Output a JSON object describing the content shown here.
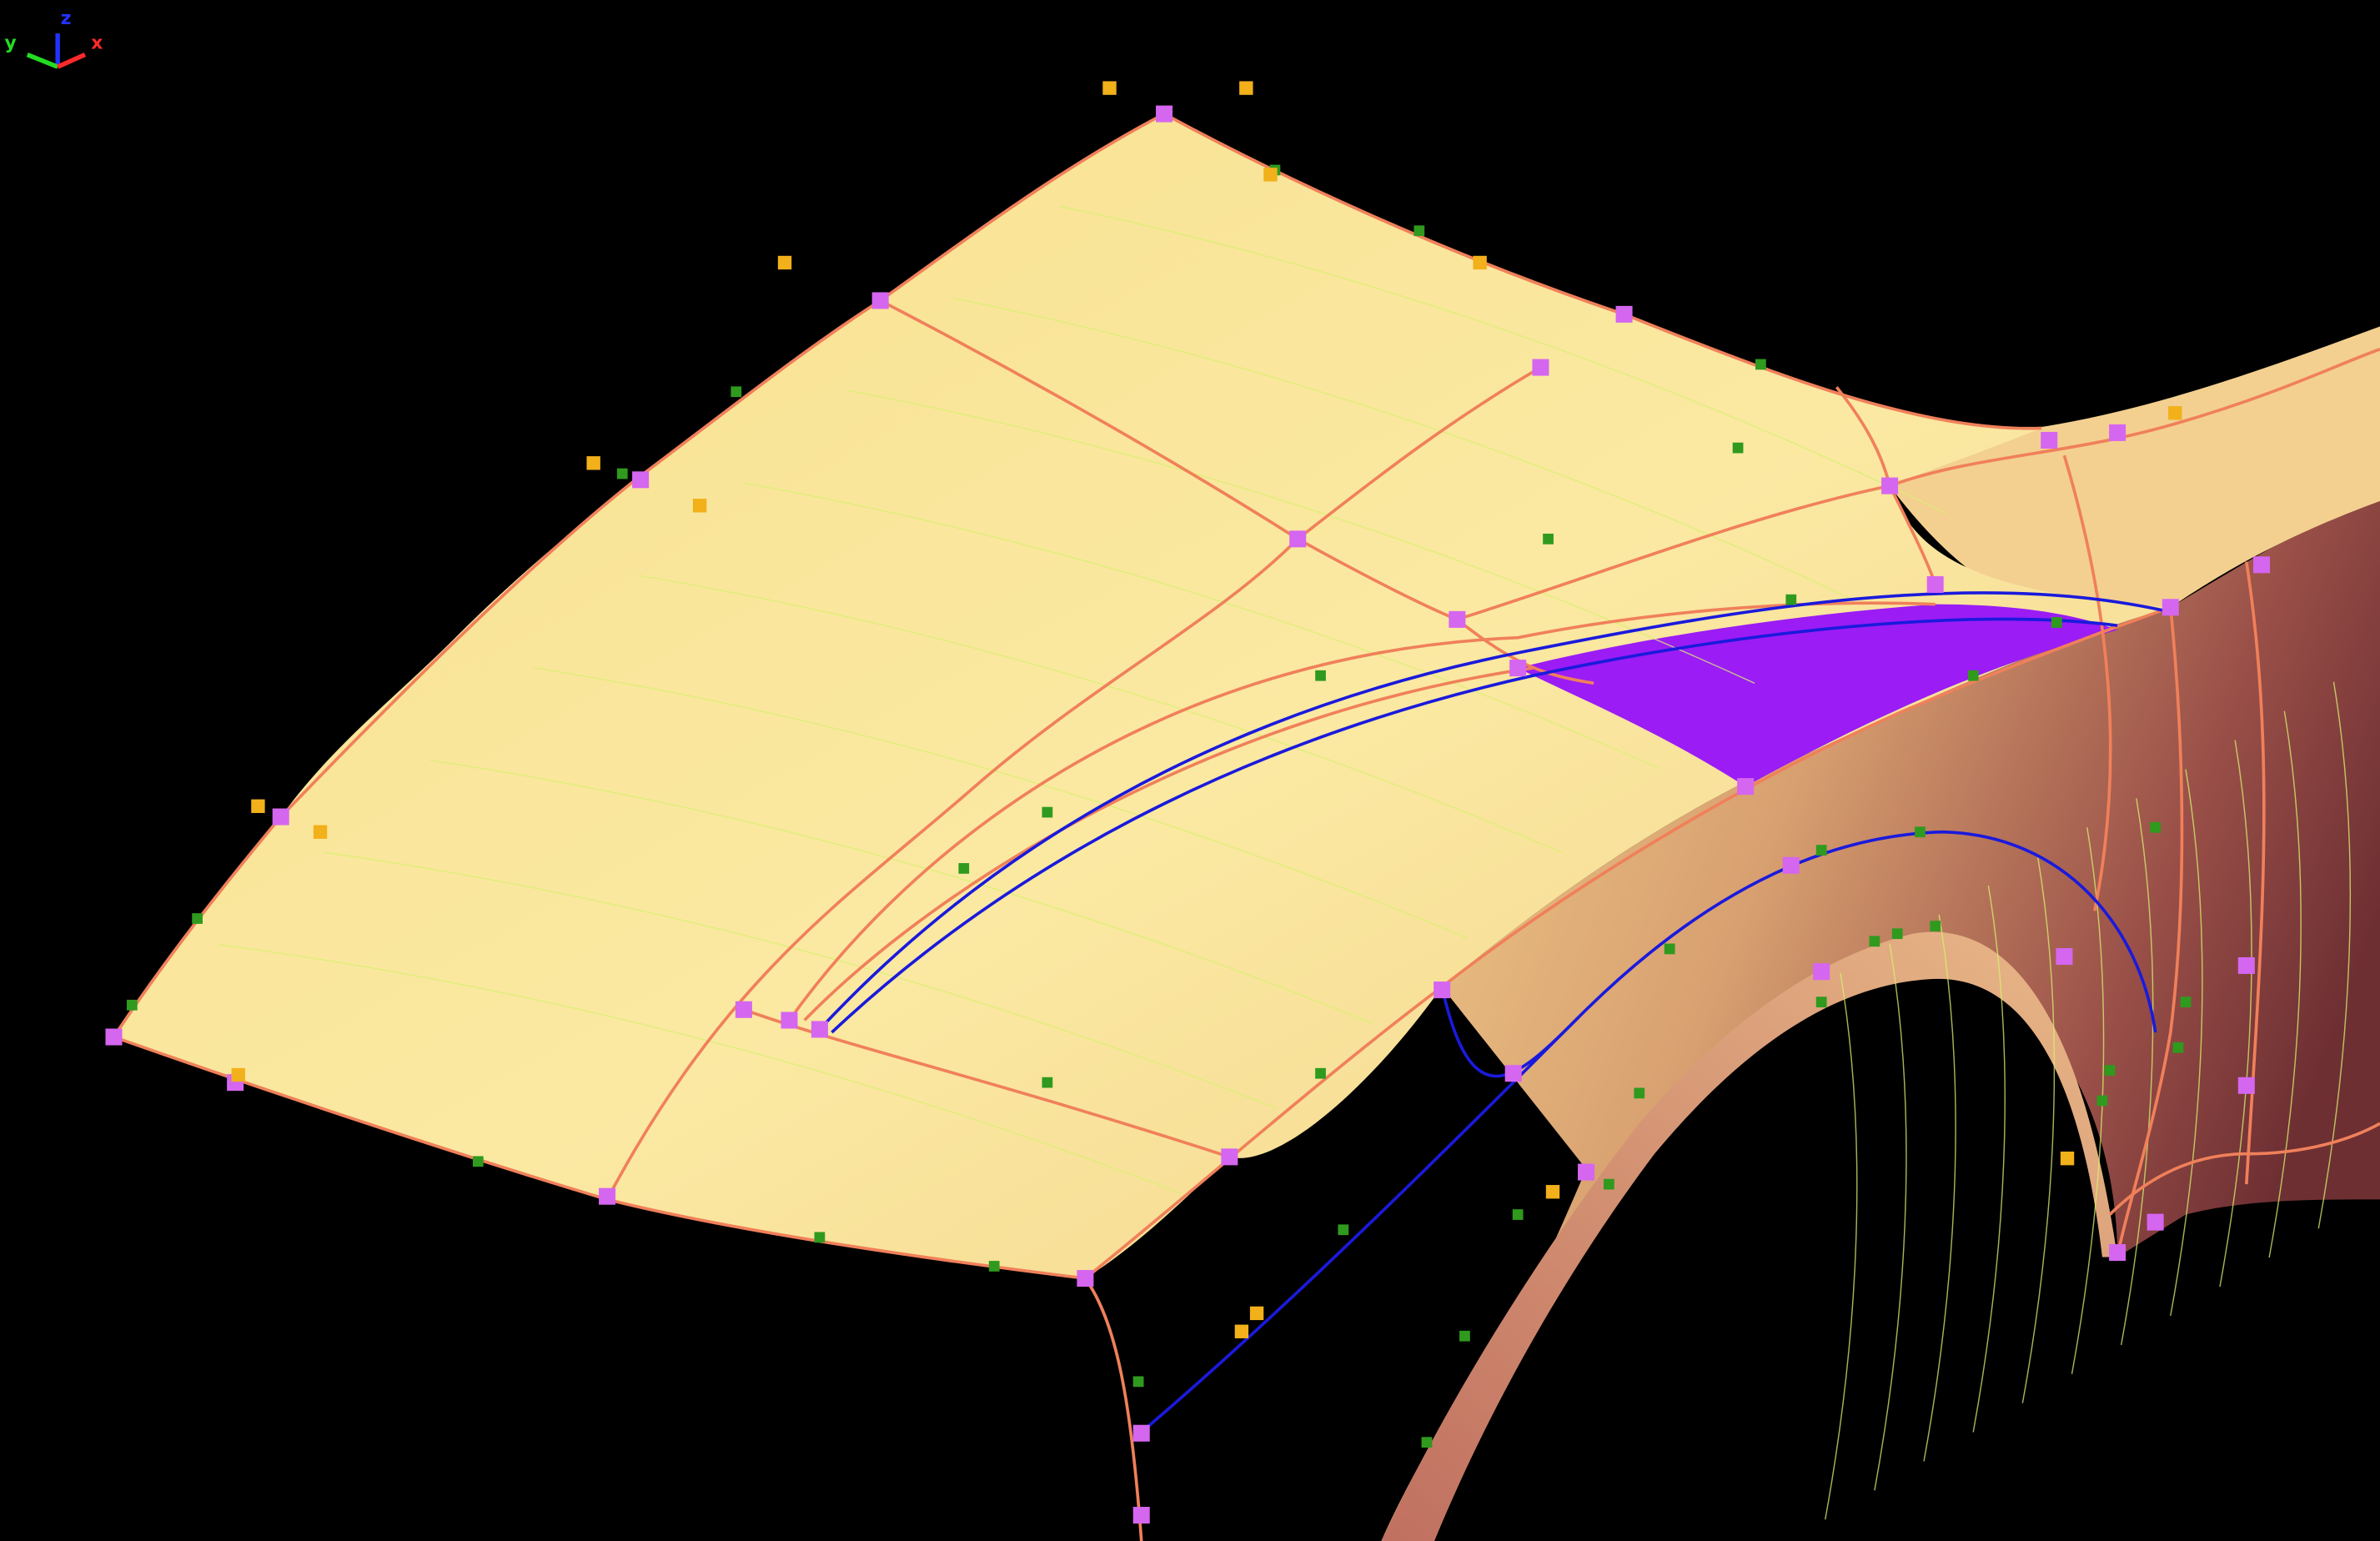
{
  "viewport": {
    "background": "#000000",
    "axis_triad": {
      "x_label": "x",
      "y_label": "y",
      "z_label": "z",
      "x_color": "#ff2a2a",
      "y_color": "#22dd22",
      "z_color": "#2233ff"
    },
    "colors": {
      "surface": "#fbe79a",
      "surface_shadow": "#e8c27a",
      "fender_dark": "#7a3a3a",
      "selected_face": "#9b1cf5",
      "edge_curve": "#f0805a",
      "iso_lines": "#d8f070",
      "guide_curve": "#1a1adc",
      "vertex_marker": "#d566f0",
      "midpoint_marker": "#2f9a1e",
      "control_point": "#f2b01a"
    }
  }
}
